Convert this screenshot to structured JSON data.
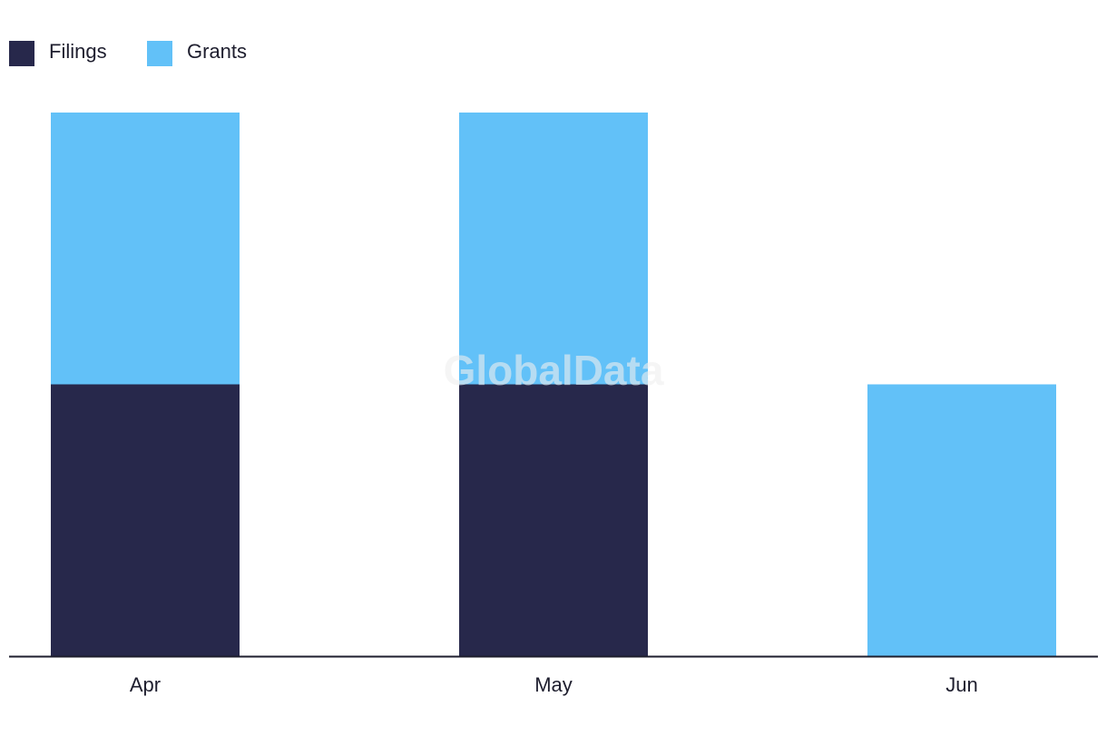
{
  "chart_data": {
    "type": "stacked_bar",
    "watermark": "GlobalData",
    "categories": [
      "Apr",
      "May",
      "Jun"
    ],
    "series": [
      {
        "name": "Filings",
        "color": "#27284b",
        "values": [
          1,
          1,
          0
        ]
      },
      {
        "name": "Grants",
        "color": "#62c1f8",
        "values": [
          1,
          1,
          1
        ]
      }
    ],
    "legend": "top-left"
  }
}
